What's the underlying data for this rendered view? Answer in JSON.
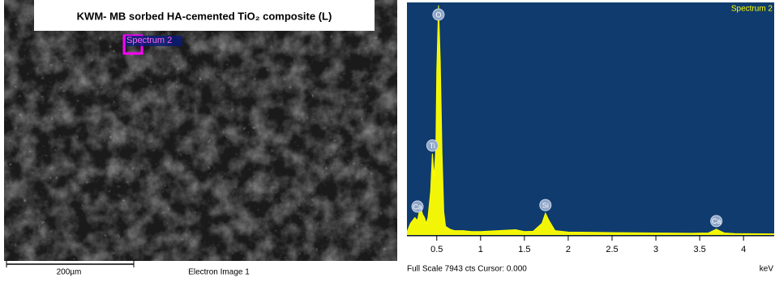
{
  "sem_image": {
    "title": "KWM-   MB sorbed HA-cemented TiO₂ composite (L)",
    "spectrum_label": "Spectrum 2",
    "scale_bar": "200µm",
    "caption": "Electron Image 1"
  },
  "chart_data": {
    "type": "area",
    "legend": "Spectrum 2",
    "color": "#ffff00",
    "background": "#0f3b6e",
    "x": [
      0.16,
      0.2,
      0.25,
      0.28,
      0.3,
      0.32,
      0.34,
      0.36,
      0.38,
      0.4,
      0.43,
      0.45,
      0.47,
      0.49,
      0.5,
      0.52,
      0.54,
      0.56,
      0.58,
      0.6,
      0.65,
      0.7,
      0.8,
      0.9,
      1.0,
      1.2,
      1.4,
      1.5,
      1.6,
      1.7,
      1.74,
      1.78,
      1.85,
      2.0,
      2.3,
      2.6,
      3.0,
      3.4,
      3.6,
      3.69,
      3.78,
      3.9,
      4.35
    ],
    "values": [
      100,
      400,
      600,
      500,
      800,
      900,
      700,
      600,
      400,
      600,
      1500,
      2800,
      2000,
      3000,
      5600,
      7900,
      6000,
      2800,
      800,
      300,
      200,
      150,
      150,
      120,
      120,
      150,
      180,
      120,
      130,
      400,
      750,
      500,
      150,
      100,
      90,
      80,
      70,
      60,
      70,
      200,
      70,
      50,
      40
    ],
    "annotations": [
      {
        "text": "Ca",
        "x": 0.28,
        "y": 700
      },
      {
        "text": "Ti",
        "x": 0.45,
        "y": 2800
      },
      {
        "text": "O",
        "x": 0.52,
        "y": 7900
      },
      {
        "text": "Si",
        "x": 1.74,
        "y": 750
      },
      {
        "text": "Ca",
        "x": 3.69,
        "y": 200
      }
    ],
    "xlim": [
      0.16,
      4.35
    ],
    "ylim": [
      0,
      8000
    ],
    "xticks": [
      0.5,
      1,
      1.5,
      2,
      2.5,
      3,
      3.5,
      4
    ],
    "x_unit": "keV",
    "footer": "Full Scale 7943 cts Cursor: 0.000"
  }
}
